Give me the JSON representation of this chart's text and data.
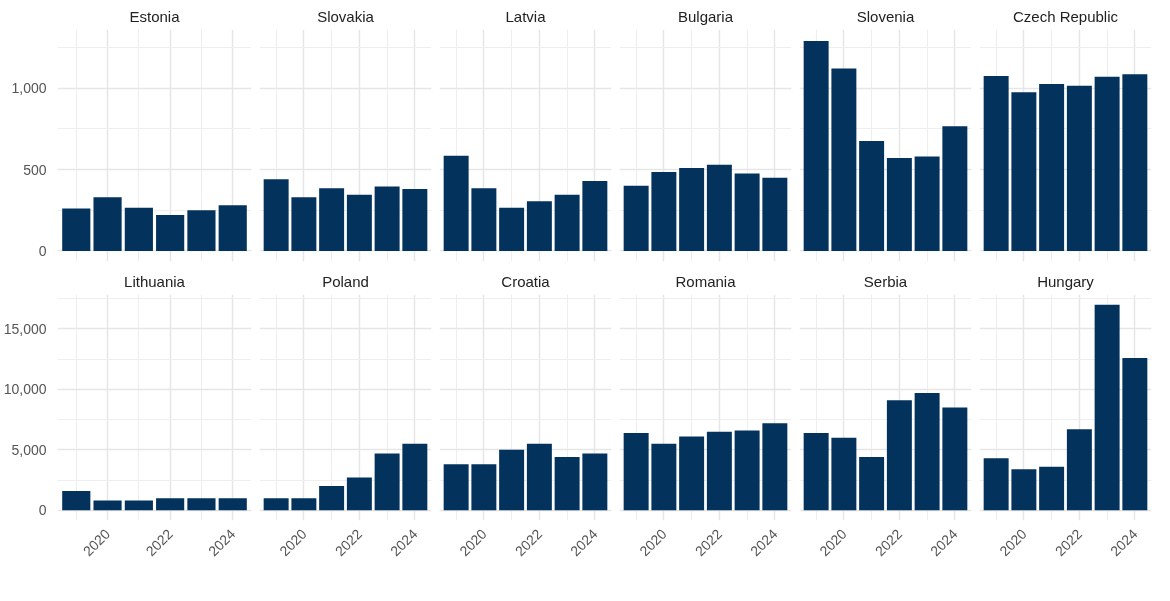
{
  "chart_data": [
    {
      "type": "bar",
      "title": "Estonia",
      "x": [
        2019,
        2020,
        2021,
        2022,
        2023,
        2024
      ],
      "values": [
        260,
        330,
        265,
        220,
        250,
        280
      ],
      "color": "#03325c",
      "xlim": [
        2018.4,
        2024.6
      ],
      "xticks": [
        2020,
        2022,
        2024
      ],
      "ylim": [
        -65,
        1360
      ],
      "yticks": [
        {
          "value": 0,
          "label": "0"
        },
        {
          "value": 500,
          "label": "500"
        },
        {
          "value": 1000,
          "label": "1,000"
        }
      ],
      "grid": true,
      "tick_labels": "y"
    },
    {
      "type": "bar",
      "title": "Slovakia",
      "x": [
        2019,
        2020,
        2021,
        2022,
        2023,
        2024
      ],
      "values": [
        440,
        330,
        385,
        345,
        395,
        380
      ],
      "color": "#03325c",
      "xlim": [
        2018.4,
        2024.6
      ],
      "xticks": [
        2020,
        2022,
        2024
      ],
      "ylim": [
        -65,
        1360
      ],
      "yticks": [
        0,
        500,
        1000
      ],
      "grid": true,
      "tick_labels": false
    },
    {
      "type": "bar",
      "title": "Latvia",
      "x": [
        2019,
        2020,
        2021,
        2022,
        2023,
        2024
      ],
      "values": [
        585,
        385,
        265,
        305,
        345,
        430
      ],
      "color": "#03325c",
      "xlim": [
        2018.4,
        2024.6
      ],
      "xticks": [
        2020,
        2022,
        2024
      ],
      "ylim": [
        -65,
        1360
      ],
      "yticks": [
        0,
        500,
        1000
      ],
      "grid": true,
      "tick_labels": false
    },
    {
      "type": "bar",
      "title": "Bulgaria",
      "x": [
        2019,
        2020,
        2021,
        2022,
        2023,
        2024
      ],
      "values": [
        400,
        485,
        510,
        530,
        475,
        450
      ],
      "color": "#03325c",
      "xlim": [
        2018.4,
        2024.6
      ],
      "xticks": [
        2020,
        2022,
        2024
      ],
      "ylim": [
        -65,
        1360
      ],
      "yticks": [
        0,
        500,
        1000
      ],
      "grid": true,
      "tick_labels": false
    },
    {
      "type": "bar",
      "title": "Slovenia",
      "x": [
        2019,
        2020,
        2021,
        2022,
        2023,
        2024
      ],
      "values": [
        1290,
        1120,
        675,
        570,
        580,
        765
      ],
      "color": "#03325c",
      "xlim": [
        2018.4,
        2024.6
      ],
      "xticks": [
        2020,
        2022,
        2024
      ],
      "ylim": [
        -65,
        1360
      ],
      "yticks": [
        0,
        500,
        1000
      ],
      "grid": true,
      "tick_labels": false
    },
    {
      "type": "bar",
      "title": "Czech Republic",
      "x": [
        2019,
        2020,
        2021,
        2022,
        2023,
        2024
      ],
      "values": [
        1075,
        975,
        1025,
        1015,
        1070,
        1085
      ],
      "color": "#03325c",
      "xlim": [
        2018.4,
        2024.6
      ],
      "xticks": [
        2020,
        2022,
        2024
      ],
      "ylim": [
        -65,
        1360
      ],
      "yticks": [
        0,
        500,
        1000
      ],
      "grid": true,
      "tick_labels": false
    },
    {
      "type": "bar",
      "title": "Lithuania",
      "x": [
        2019,
        2020,
        2021,
        2022,
        2023,
        2024
      ],
      "values": [
        1600,
        800,
        800,
        1000,
        1000,
        1000
      ],
      "color": "#03325c",
      "xlim": [
        2018.4,
        2024.6
      ],
      "xticks": [
        2020,
        2022,
        2024
      ],
      "ylim": [
        -850,
        17850
      ],
      "yticks": [
        {
          "value": 0,
          "label": "0"
        },
        {
          "value": 5000,
          "label": "5,000"
        },
        {
          "value": 10000,
          "label": "10,000"
        },
        {
          "value": 15000,
          "label": "15,000"
        }
      ],
      "grid": true
    },
    {
      "type": "bar",
      "title": "Poland",
      "x": [
        2019,
        2020,
        2021,
        2022,
        2023,
        2024
      ],
      "values": [
        1000,
        1000,
        2000,
        2700,
        4700,
        5500
      ],
      "color": "#03325c",
      "xlim": [
        2018.4,
        2024.6
      ],
      "xticks": [
        2020,
        2022,
        2024
      ],
      "ylim": [
        -850,
        17850
      ],
      "yticks": [
        0,
        5000,
        10000,
        15000
      ],
      "grid": true,
      "tick_labels": "x"
    },
    {
      "type": "bar",
      "title": "Croatia",
      "x": [
        2019,
        2020,
        2021,
        2022,
        2023,
        2024
      ],
      "values": [
        3800,
        3800,
        5000,
        5500,
        4400,
        4700
      ],
      "color": "#03325c",
      "xlim": [
        2018.4,
        2024.6
      ],
      "xticks": [
        2020,
        2022,
        2024
      ],
      "ylim": [
        -850,
        17850
      ],
      "yticks": [
        0,
        5000,
        10000,
        15000
      ],
      "grid": true,
      "tick_labels": "x"
    },
    {
      "type": "bar",
      "title": "Romania",
      "x": [
        2019,
        2020,
        2021,
        2022,
        2023,
        2024
      ],
      "values": [
        6400,
        5500,
        6100,
        6500,
        6600,
        7200
      ],
      "color": "#03325c",
      "xlim": [
        2018.4,
        2024.6
      ],
      "xticks": [
        2020,
        2022,
        2024
      ],
      "ylim": [
        -850,
        17850
      ],
      "yticks": [
        0,
        5000,
        10000,
        15000
      ],
      "grid": true,
      "tick_labels": "x"
    },
    {
      "type": "bar",
      "title": "Serbia",
      "x": [
        2019,
        2020,
        2021,
        2022,
        2023,
        2024
      ],
      "values": [
        6400,
        6000,
        4400,
        9100,
        9700,
        8500
      ],
      "color": "#03325c",
      "xlim": [
        2018.4,
        2024.6
      ],
      "xticks": [
        2020,
        2022,
        2024
      ],
      "ylim": [
        -850,
        17850
      ],
      "yticks": [
        0,
        5000,
        10000,
        15000
      ],
      "grid": true,
      "tick_labels": "x"
    },
    {
      "type": "bar",
      "title": "Hungary",
      "x": [
        2019,
        2020,
        2021,
        2022,
        2023,
        2024
      ],
      "values": [
        4300,
        3400,
        3600,
        6700,
        17000,
        12600
      ],
      "color": "#03325c",
      "xlim": [
        2018.4,
        2024.6
      ],
      "xticks": [
        2020,
        2022,
        2024
      ],
      "ylim": [
        -850,
        17850
      ],
      "yticks": [
        0,
        5000,
        10000,
        15000
      ],
      "grid": true,
      "tick_labels": "x"
    }
  ]
}
